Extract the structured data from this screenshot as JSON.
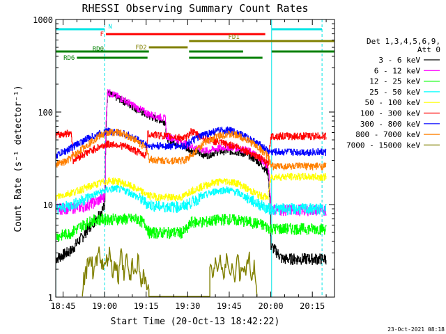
{
  "chart_data": {
    "type": "line",
    "title": "RHESSI Observing Summary Count Rates",
    "xlabel": "Start Time (20-Oct-13 18:42:22)",
    "ylabel": "Count Rate (s⁻¹ detector⁻¹)",
    "y_scale": "log",
    "ylim": [
      1,
      1000
    ],
    "xlim_min": [
      42.37,
      143
    ],
    "x_ticks": [
      {
        "min": 45,
        "label": "18:45"
      },
      {
        "min": 60,
        "label": "19:00"
      },
      {
        "min": 75,
        "label": "19:15"
      },
      {
        "min": 90,
        "label": "19:30"
      },
      {
        "min": 105,
        "label": "19:45"
      },
      {
        "min": 120,
        "label": "20:00"
      },
      {
        "min": 135,
        "label": "20:15"
      }
    ],
    "y_ticks": [
      {
        "value": 1,
        "label": "1"
      },
      {
        "value": 10,
        "label": "10"
      },
      {
        "value": 100,
        "label": "100"
      },
      {
        "value": 1000,
        "label": "1000"
      }
    ],
    "legend_header": [
      "Det 1,3,4,5,6,9,",
      "Att 0"
    ],
    "legend_placement": "right",
    "series": [
      {
        "name": "3 - 6 keV",
        "color": "#000000",
        "points": [
          [
            42.4,
            2.6
          ],
          [
            48,
            3.2
          ],
          [
            52,
            4.5
          ],
          [
            56,
            6.5
          ],
          [
            60,
            9.5
          ],
          [
            60.2,
            18
          ],
          [
            61,
            160
          ],
          [
            64,
            145
          ],
          [
            68,
            125
          ],
          [
            72,
            105
          ],
          [
            76,
            90
          ],
          [
            80,
            82
          ],
          [
            82,
            78
          ],
          [
            82.2,
            52
          ],
          [
            85,
            48
          ],
          [
            90,
            40
          ],
          [
            94,
            36
          ],
          [
            97,
            34
          ],
          [
            100,
            37
          ],
          [
            104,
            38
          ],
          [
            108,
            37
          ],
          [
            112,
            34
          ],
          [
            116,
            28
          ],
          [
            119,
            22
          ],
          [
            120,
            3.6
          ],
          [
            124,
            2.6
          ],
          [
            130,
            2.6
          ],
          [
            140,
            2.6
          ]
        ]
      },
      {
        "name": "6 - 12 keV",
        "color": "#ff00ff",
        "points": [
          [
            42.4,
            9
          ],
          [
            48,
            9.2
          ],
          [
            52,
            9.5
          ],
          [
            56,
            10.5
          ],
          [
            60,
            12
          ],
          [
            60.2,
            20
          ],
          [
            61,
            165
          ],
          [
            64,
            150
          ],
          [
            68,
            130
          ],
          [
            72,
            110
          ],
          [
            76,
            95
          ],
          [
            80,
            88
          ],
          [
            82,
            85
          ],
          [
            82.2,
            55
          ],
          [
            85,
            52
          ],
          [
            90,
            44
          ],
          [
            94,
            40
          ],
          [
            97,
            38
          ],
          [
            100,
            40
          ],
          [
            104,
            42
          ],
          [
            108,
            41
          ],
          [
            112,
            38
          ],
          [
            116,
            32
          ],
          [
            119,
            25
          ],
          [
            120,
            9
          ],
          [
            124,
            8.8
          ],
          [
            130,
            8.8
          ],
          [
            140,
            8.8
          ]
        ]
      },
      {
        "name": "12 - 25 keV",
        "color": "#00ff00",
        "points": [
          [
            42.4,
            4.5
          ],
          [
            48,
            5
          ],
          [
            52,
            6
          ],
          [
            56,
            6.8
          ],
          [
            60,
            7
          ],
          [
            64,
            7
          ],
          [
            68,
            7
          ],
          [
            72,
            7
          ],
          [
            75,
            6
          ],
          [
            76,
            5
          ],
          [
            80,
            5
          ],
          [
            85,
            5
          ],
          [
            88,
            5
          ],
          [
            90,
            5.5
          ],
          [
            91,
            6.5
          ],
          [
            96,
            6.5
          ],
          [
            100,
            6.8
          ],
          [
            104,
            7
          ],
          [
            108,
            6.8
          ],
          [
            112,
            6.5
          ],
          [
            116,
            6.2
          ],
          [
            120,
            5.5
          ],
          [
            124,
            5.5
          ],
          [
            130,
            5.5
          ],
          [
            140,
            5.5
          ]
        ]
      },
      {
        "name": "25 - 50 keV",
        "color": "#00ffff",
        "points": [
          [
            42.4,
            9
          ],
          [
            46,
            9.5
          ],
          [
            50,
            10.5
          ],
          [
            54,
            12
          ],
          [
            58,
            13.5
          ],
          [
            61,
            14.5
          ],
          [
            64,
            15
          ],
          [
            68,
            14
          ],
          [
            72,
            12
          ],
          [
            76,
            10
          ],
          [
            80,
            9.5
          ],
          [
            85,
            9.5
          ],
          [
            88,
            9.5
          ],
          [
            91,
            10.5
          ],
          [
            96,
            12.5
          ],
          [
            100,
            14
          ],
          [
            104,
            14.5
          ],
          [
            108,
            13.5
          ],
          [
            112,
            11.5
          ],
          [
            116,
            10
          ],
          [
            119,
            9
          ],
          [
            120,
            9
          ],
          [
            124,
            9
          ],
          [
            130,
            9
          ],
          [
            140,
            9
          ]
        ]
      },
      {
        "name": "50 - 100 keV",
        "color": "#ffff00",
        "points": [
          [
            42.4,
            12
          ],
          [
            46,
            13
          ],
          [
            50,
            14
          ],
          [
            54,
            15.5
          ],
          [
            58,
            17
          ],
          [
            61,
            18
          ],
          [
            64,
            18
          ],
          [
            68,
            16.5
          ],
          [
            72,
            14.5
          ],
          [
            76,
            12.5
          ],
          [
            80,
            12
          ],
          [
            85,
            12
          ],
          [
            88,
            12
          ],
          [
            91,
            14
          ],
          [
            96,
            16
          ],
          [
            100,
            17.5
          ],
          [
            104,
            18
          ],
          [
            108,
            17
          ],
          [
            112,
            14.5
          ],
          [
            116,
            12.5
          ],
          [
            119,
            12
          ],
          [
            120,
            20
          ],
          [
            124,
            20
          ],
          [
            130,
            20
          ],
          [
            140,
            20
          ]
        ]
      },
      {
        "name": "100 - 300 keV",
        "color": "#ff0000",
        "points": [
          [
            42.4,
            56
          ],
          [
            45,
            58
          ],
          [
            48,
            60
          ],
          [
            48.5,
            30
          ],
          [
            50,
            32
          ],
          [
            54,
            37
          ],
          [
            58,
            42
          ],
          [
            61,
            45
          ],
          [
            64,
            45
          ],
          [
            68,
            42
          ],
          [
            72,
            37
          ],
          [
            75,
            34
          ],
          [
            75.5,
            58
          ],
          [
            80,
            56
          ],
          [
            85,
            54
          ],
          [
            89,
            52
          ],
          [
            90,
            55
          ],
          [
            91,
            62
          ],
          [
            94,
            56
          ],
          [
            96,
            52
          ],
          [
            100,
            48
          ],
          [
            104,
            45
          ],
          [
            108,
            42
          ],
          [
            112,
            37
          ],
          [
            116,
            32
          ],
          [
            119,
            27
          ],
          [
            120,
            55
          ],
          [
            124,
            55
          ],
          [
            130,
            55
          ],
          [
            140,
            55
          ]
        ]
      },
      {
        "name": "300 - 800 keV",
        "color": "#0000ff",
        "points": [
          [
            42.4,
            34
          ],
          [
            46,
            38
          ],
          [
            50,
            45
          ],
          [
            54,
            52
          ],
          [
            58,
            58
          ],
          [
            61,
            62
          ],
          [
            64,
            61
          ],
          [
            68,
            57
          ],
          [
            72,
            50
          ],
          [
            75,
            44
          ],
          [
            76,
            43
          ],
          [
            80,
            43
          ],
          [
            85,
            43
          ],
          [
            89,
            43
          ],
          [
            91,
            48
          ],
          [
            96,
            57
          ],
          [
            100,
            62
          ],
          [
            104,
            64
          ],
          [
            108,
            60
          ],
          [
            112,
            52
          ],
          [
            116,
            44
          ],
          [
            119,
            38
          ],
          [
            120,
            37
          ],
          [
            124,
            37
          ],
          [
            130,
            37
          ],
          [
            140,
            37
          ]
        ]
      },
      {
        "name": "800 - 7000 keV",
        "color": "#ff8000",
        "points": [
          [
            42.4,
            27
          ],
          [
            46,
            29
          ],
          [
            50,
            36
          ],
          [
            54,
            45
          ],
          [
            58,
            55
          ],
          [
            61,
            60
          ],
          [
            64,
            61
          ],
          [
            68,
            56
          ],
          [
            72,
            48
          ],
          [
            75,
            40
          ],
          [
            76,
            31
          ],
          [
            80,
            30
          ],
          [
            85,
            30
          ],
          [
            89,
            30
          ],
          [
            91,
            34
          ],
          [
            96,
            46
          ],
          [
            100,
            54
          ],
          [
            104,
            58
          ],
          [
            108,
            56
          ],
          [
            112,
            49
          ],
          [
            116,
            40
          ],
          [
            119,
            33
          ],
          [
            120,
            26
          ],
          [
            124,
            26
          ],
          [
            130,
            26
          ],
          [
            140,
            26
          ]
        ]
      },
      {
        "name": "7000 - 15000 keV",
        "color": "#808000",
        "points": [
          [
            52,
            1.3
          ],
          [
            53,
            1.7
          ],
          [
            54,
            2.2
          ],
          [
            55,
            2.9
          ],
          [
            56,
            1.5
          ],
          [
            57,
            2.5
          ],
          [
            58,
            2.9
          ],
          [
            59,
            2.3
          ],
          [
            60,
            1.9
          ],
          [
            61,
            2.5
          ],
          [
            62,
            2.9
          ],
          [
            63,
            1.6
          ],
          [
            64,
            2.4
          ],
          [
            65,
            1.4
          ],
          [
            66,
            2.9
          ],
          [
            67,
            1.5
          ],
          [
            68,
            2.7
          ],
          [
            69,
            1.4
          ],
          [
            70,
            2.2
          ],
          [
            71,
            1.7
          ],
          [
            72,
            2.6
          ],
          [
            73,
            1.5
          ],
          [
            74,
            1.8
          ],
          [
            75,
            1.4
          ],
          [
            76,
            1.1
          ],
          [
            98,
            2.2
          ],
          [
            99,
            1.5
          ],
          [
            100,
            2.9
          ],
          [
            101,
            1.7
          ],
          [
            102,
            2.6
          ],
          [
            103,
            1.4
          ],
          [
            104,
            2.9
          ],
          [
            105,
            1.6
          ],
          [
            106,
            2.5
          ],
          [
            107,
            1.3
          ],
          [
            108,
            2.8
          ],
          [
            109,
            1.5
          ],
          [
            110,
            2.3
          ],
          [
            111,
            1.6
          ],
          [
            112,
            2.9
          ],
          [
            113,
            1.4
          ],
          [
            114,
            2.1
          ],
          [
            115,
            1.3
          ]
        ]
      }
    ],
    "flag_bars": [
      {
        "label": "N",
        "color": "#00e5e5",
        "row": 0,
        "segments": [
          [
            42.4,
            60
          ],
          [
            120.3,
            138.5
          ]
        ]
      },
      {
        "label": "F",
        "color": "#ff0000",
        "row": 1,
        "segments": [
          [
            60.5,
            118
          ]
        ]
      },
      {
        "label": "FD1",
        "color": "#808000",
        "row": 2,
        "segments": [
          [
            90.5,
            143
          ]
        ]
      },
      {
        "label": "FD2",
        "color": "#808000",
        "row": 3,
        "segments": [
          [
            76,
            90
          ]
        ]
      },
      {
        "label": "RD0",
        "color": "#008000",
        "row": 4,
        "segments": [
          [
            42.4,
            76
          ],
          [
            90.5,
            110
          ],
          [
            120.3,
            143
          ]
        ]
      },
      {
        "label": "RD6",
        "color": "#008000",
        "row": 5,
        "segments": [
          [
            50,
            75.5
          ],
          [
            90.5,
            117
          ]
        ]
      }
    ],
    "vertical_lines": [
      {
        "min": 42.4,
        "style": "solid",
        "color": "#00e5e5"
      },
      {
        "min": 60,
        "style": "dashed",
        "color": "#00e5e5"
      },
      {
        "min": 120.3,
        "style": "solid",
        "color": "#00e5e5"
      },
      {
        "min": 138.5,
        "style": "dashed",
        "color": "#00e5e5"
      }
    ],
    "footer": "23-Oct-2021 08:18"
  }
}
